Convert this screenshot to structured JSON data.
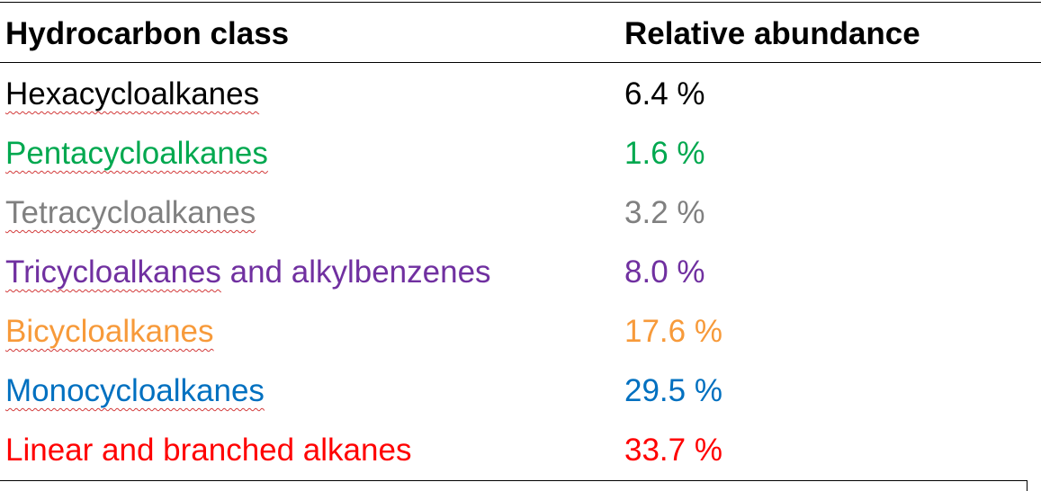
{
  "table": {
    "headers": [
      "Hydrocarbon class",
      "Relative abundance"
    ],
    "rows": [
      {
        "class": "Hexacycloalkanes",
        "abundance": "6.4 %",
        "color": "#000000"
      },
      {
        "class": "Pentacycloalkanes",
        "abundance": "1.6 %",
        "color": "#00a84f"
      },
      {
        "class": "Tetracycloalkanes",
        "abundance": "3.2 %",
        "color": "#808080"
      },
      {
        "class_part1": "Tricycloalkanes",
        "class_part2": " and alkylbenzenes",
        "abundance": "8.0 %",
        "color": "#7030a0"
      },
      {
        "class": "Bicycloalkanes",
        "abundance": "17.6 %",
        "color": "#f79a3a"
      },
      {
        "class": "Monocycloalkanes",
        "abundance": "29.5 %",
        "color": "#0070c0"
      },
      {
        "class": "Linear and branched alkanes",
        "abundance": "33.7 %",
        "color": "#ff0000"
      }
    ]
  }
}
